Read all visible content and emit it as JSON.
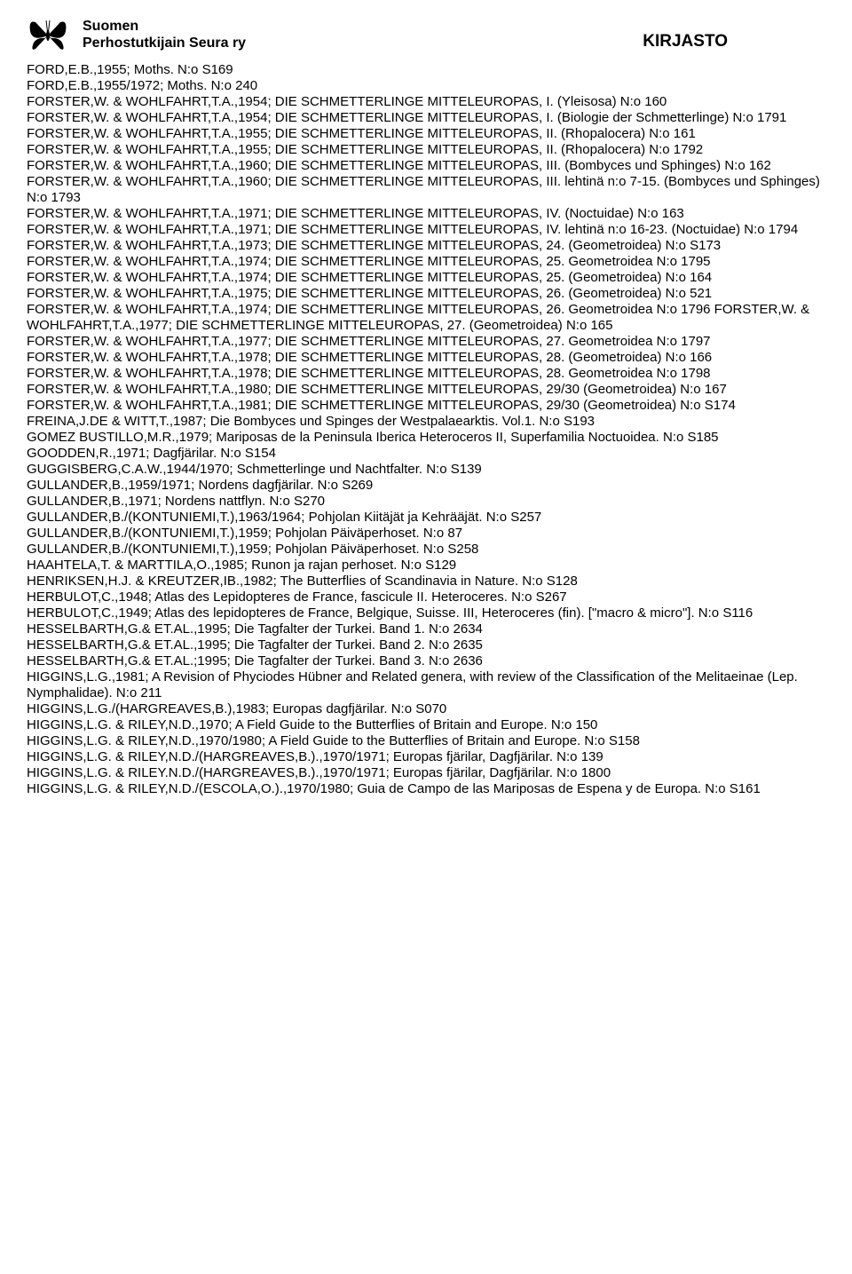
{
  "header": {
    "org_line1": "Suomen",
    "org_line2": "Perhostutkijain Seura ry",
    "title_right": "KIRJASTO"
  },
  "entries": [
    "FORD,E.B.,1955; Moths. N:o S169",
    "FORD,E.B.,1955/1972; Moths. N:o 240",
    "FORSTER,W. & WOHLFAHRT,T.A.,1954; DIE SCHMETTERLINGE MITTELEUROPAS, I. (Yleisosa) N:o 160",
    "FORSTER,W. & WOHLFAHRT,T.A.,1954; DIE SCHMETTERLINGE MITTELEUROPAS, I. (Biologie der Schmetterlinge) N:o 1791 FORSTER,W. & WOHLFAHRT,T.A.,1955; DIE SCHMETTERLINGE MITTELEUROPAS, II. (Rhopalocera) N:o 161",
    "FORSTER,W. & WOHLFAHRT,T.A.,1955; DIE SCHMETTERLINGE MITTELEUROPAS, II. (Rhopalocera) N:o 1792",
    "FORSTER,W. & WOHLFAHRT,T.A.,1960; DIE SCHMETTERLINGE MITTELEUROPAS, III. (Bombyces und Sphinges) N:o 162",
    "FORSTER,W. & WOHLFAHRT,T.A.,1960; DIE SCHMETTERLINGE MITTELEUROPAS, III. lehtinä n:o 7-15. (Bombyces und Sphinges) N:o 1793",
    "FORSTER,W. & WOHLFAHRT,T.A.,1971; DIE SCHMETTERLINGE MITTELEUROPAS, IV. (Noctuidae) N:o 163",
    "FORSTER,W. & WOHLFAHRT,T.A.,1971; DIE SCHMETTERLINGE MITTELEUROPAS, IV. lehtinä n:o 16-23. (Noctuidae) N:o 1794",
    "FORSTER,W. & WOHLFAHRT,T.A.,1973; DIE SCHMETTERLINGE MITTELEUROPAS, 24. (Geometroidea) N:o S173",
    "FORSTER,W. & WOHLFAHRT,T.A.,1974; DIE SCHMETTERLINGE MITTELEUROPAS, 25. Geometroidea N:o 1795",
    "FORSTER,W. & WOHLFAHRT,T.A.,1974; DIE SCHMETTERLINGE MITTELEUROPAS, 25. (Geometroidea) N:o 164",
    "FORSTER,W. & WOHLFAHRT,T.A.,1975; DIE SCHMETTERLINGE MITTELEUROPAS, 26. (Geometroidea) N:o 521",
    "FORSTER,W. & WOHLFAHRT,T.A.,1974; DIE SCHMETTERLINGE MITTELEUROPAS, 26. Geometroidea N:o 1796 FORSTER,W. & WOHLFAHRT,T.A.,1977; DIE SCHMETTERLINGE MITTELEUROPAS, 27. (Geometroidea) N:o 165",
    "FORSTER,W. & WOHLFAHRT,T.A.,1977; DIE SCHMETTERLINGE MITTELEUROPAS, 27. Geometroidea N:o 1797",
    "FORSTER,W. & WOHLFAHRT,T.A.,1978; DIE SCHMETTERLINGE MITTELEUROPAS, 28. (Geometroidea) N:o 166",
    "FORSTER,W. & WOHLFAHRT,T.A.,1978; DIE SCHMETTERLINGE MITTELEUROPAS, 28. Geometroidea N:o 1798",
    "FORSTER,W. & WOHLFAHRT,T.A.,1980; DIE SCHMETTERLINGE MITTELEUROPAS, 29/30 (Geometroidea) N:o 167",
    "FORSTER,W. & WOHLFAHRT,T.A.,1981; DIE SCHMETTERLINGE MITTELEUROPAS, 29/30 (Geometroidea) N:o S174",
    "FREINA,J.DE & WITT,T.,1987; Die Bombyces und Spinges der Westpalaearktis. Vol.1. N:o S193",
    "GOMEZ BUSTILLO,M.R.,1979; Mariposas de la Peninsula Iberica Heteroceros II, Superfamilia Noctuoidea. N:o S185 GOODDEN,R.,1971; Dagfjärilar. N:o S154",
    "GUGGISBERG,C.A.W.,1944/1970; Schmetterlinge und Nachtfalter. N:o S139",
    "GULLANDER,B.,1959/1971; Nordens dagfjärilar. N:o S269",
    "GULLANDER,B.,1971; Nordens nattflyn. N:o S270",
    "GULLANDER,B./(KONTUNIEMI,T.),1963/1964; Pohjolan Kiitäjät ja Kehrääjät. N:o S257",
    "GULLANDER,B./(KONTUNIEMI,T.),1959; Pohjolan Päiväperhoset. N:o 87",
    "GULLANDER,B./(KONTUNIEMI,T.),1959; Pohjolan Päiväperhoset. N:o S258",
    "HAAHTELA,T. & MARTTILA,O.,1985; Runon ja rajan perhoset. N:o S129",
    "HENRIKSEN,H.J. & KREUTZER,IB.,1982; The Butterflies of Scandinavia in Nature. N:o S128",
    "HERBULOT,C.,1948; Atlas des Lepidopteres de France, fascicule II. Heteroceres. N:o S267",
    "HERBULOT,C.,1949; Atlas des lepidopteres de France, Belgique, Suisse. III, Heteroceres (fin). [\"macro & micro\"]. N:o S116",
    "HESSELBARTH,G.& ET.AL.,1995; Die Tagfalter der Turkei. Band 1. N:o 2634",
    "HESSELBARTH,G.& ET.AL.,1995; Die Tagfalter der Turkei. Band 2. N:o 2635",
    "HESSELBARTH,G.& ET.AL.;1995; Die Tagfalter der Turkei. Band 3. N:o 2636",
    "HIGGINS,L.G.,1981; A Revision of Phyciodes Hübner and Related genera, with review of the   Classification of the Melitaeinae (Lep. Nymphalidae). N:o 211",
    "HIGGINS,L.G./(HARGREAVES,B.),1983; Europas dagfjärilar. N:o S070",
    "HIGGINS,L.G. & RILEY,N.D.,1970; A Field Guide to the Butterflies of Britain and Europe. N:o 150",
    "HIGGINS,L.G. & RILEY,N.D.,1970/1980; A Field Guide to the Butterflies of Britain and Europe. N:o S158",
    "HIGGINS,L.G. & RILEY,N.D./(HARGREAVES,B.).,1970/1971; Europas fjärilar, Dagfjärilar. N:o 139",
    "HIGGINS,L.G. & RILEY.N.D./(HARGREAVES,B.).,1970/1971; Europas fjärilar, Dagfjärilar. N:o 1800",
    "HIGGINS,L.G. & RILEY,N.D./(ESCOLA,O.).,1970/1980; Guia de Campo de las Mariposas de Espena y de Europa. N:o S161"
  ]
}
